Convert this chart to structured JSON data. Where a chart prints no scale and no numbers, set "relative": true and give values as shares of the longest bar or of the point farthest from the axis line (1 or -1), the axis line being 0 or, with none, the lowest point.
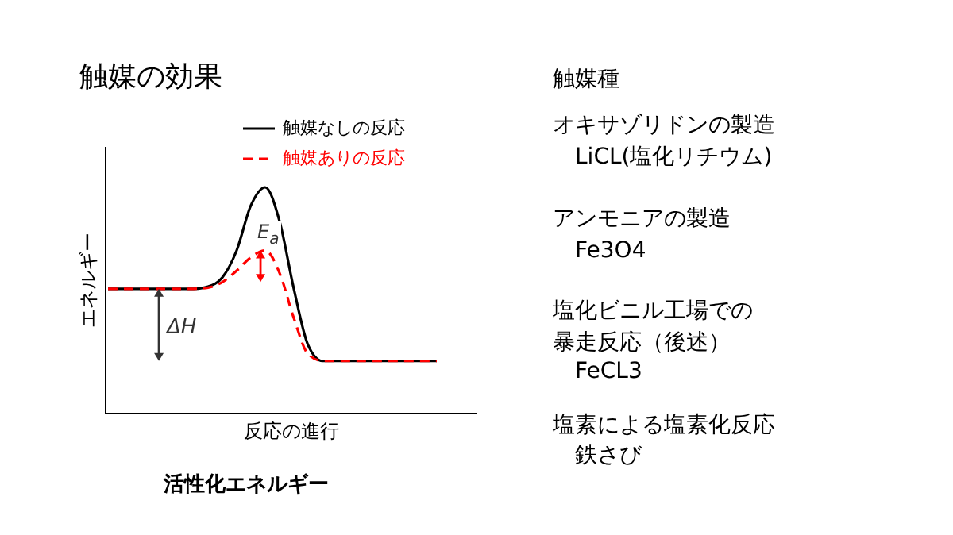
{
  "chart_data": {
    "type": "line",
    "title": "触媒の効果",
    "ylabel": "エネルギー",
    "xlabel": "反応の進行",
    "relative": true,
    "legend": "top right",
    "categories": [
      null,
      null,
      null,
      null,
      null,
      null,
      null,
      null,
      null,
      null,
      null,
      null,
      null,
      null,
      null,
      null,
      null,
      null,
      null,
      null,
      null,
      null,
      null,
      null
    ],
    "series": [
      {
        "name": "触媒なしの反応",
        "color": "#000000",
        "line_style": "solid",
        "values": [
          0.55,
          0.55,
          0.55,
          0.55,
          0.55,
          0.55,
          0.55,
          0.56,
          0.6,
          0.72,
          0.92,
          1,
          0.85,
          0.55,
          0.3,
          0.23,
          0.23,
          0.23,
          0.23,
          0.23,
          0.23,
          0.23,
          0.23,
          0.23
        ]
      },
      {
        "name": "触媒ありの反応",
        "color": "#ff0000",
        "line_style": "dashed",
        "values": [
          0.55,
          0.55,
          0.55,
          0.55,
          0.55,
          0.55,
          0.55,
          0.555,
          0.58,
          0.63,
          0.69,
          0.72,
          0.62,
          0.42,
          0.26,
          0.23,
          0.23,
          0.23,
          0.23,
          0.23,
          0.23,
          0.23,
          0.23,
          0.23
        ]
      }
    ],
    "annotations": [
      "E$_{a}$",
      "ΔH",
      "活性化エネルギー",
      "触媒種",
      "オキサゾリドンの製造",
      "LiCL(塩化リチウム)",
      "アンモニアの製造",
      "Fe3O4",
      "塩化ビニル工場での",
      "暴走反応（後述）",
      "FeCL3",
      "塩素による塩素化反応",
      "鉄さび"
    ]
  }
}
